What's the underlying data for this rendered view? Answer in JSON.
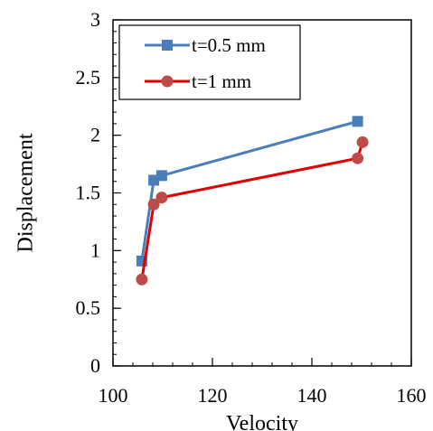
{
  "chart_data": {
    "type": "line",
    "xlabel": "Velocity",
    "ylabel": "Displacement",
    "xlim": [
      100,
      160
    ],
    "ylim": [
      0,
      3
    ],
    "x_ticks": [
      "100",
      "120",
      "140",
      "160"
    ],
    "y_ticks": [
      "0",
      "0.5",
      "1",
      "1.5",
      "2",
      "2.5",
      "3"
    ],
    "x_tick_values": [
      100,
      120,
      140,
      160
    ],
    "y_tick_values": [
      0,
      0.5,
      1,
      1.5,
      2,
      2.5,
      3
    ],
    "x_minor_step": 4,
    "y_minor_step": 0.1,
    "grid": false,
    "legend_position": "top-left",
    "series": [
      {
        "name": "t=0.5 mm",
        "marker": "square",
        "color": "#4a7ebb",
        "points": [
          {
            "x": 105.8,
            "y": 0.91
          },
          {
            "x": 108.2,
            "y": 1.61
          },
          {
            "x": 109.8,
            "y": 1.65
          },
          {
            "x": 149.2,
            "y": 2.12
          }
        ]
      },
      {
        "name": "t=1 mm",
        "marker": "circle",
        "color": "#be4b48",
        "line_color": "#e00000",
        "points": [
          {
            "x": 105.8,
            "y": 0.75
          },
          {
            "x": 108.2,
            "y": 1.4
          },
          {
            "x": 109.8,
            "y": 1.46
          },
          {
            "x": 149.2,
            "y": 1.8
          },
          {
            "x": 150.2,
            "y": 1.94
          }
        ]
      }
    ]
  }
}
